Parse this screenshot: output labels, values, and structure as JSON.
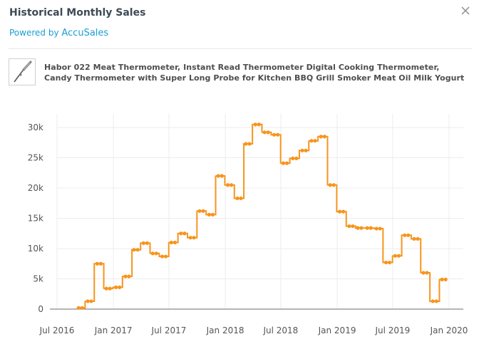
{
  "header": {
    "title": "Historical Monthly Sales",
    "powered_prefix": "Powered by ",
    "powered_brand": "AccuSales"
  },
  "product": {
    "icon": "meat-thermometer-thumbnail",
    "name": "Habor 022 Meat Thermometer, Instant Read Thermometer Digital Cooking Thermometer, Candy Thermometer with Super Long Probe for Kitchen BBQ Grill Smoker Meat Oil Milk Yogurt"
  },
  "colors": {
    "line": "#f7941d",
    "accent": "#1a9ed4",
    "grid": "#ececec"
  },
  "chart_data": {
    "type": "line",
    "step": true,
    "title": "",
    "xlabel": "",
    "ylabel": "",
    "ylim": [
      0,
      32000
    ],
    "yticks": [
      0,
      5000,
      10000,
      15000,
      20000,
      25000,
      30000
    ],
    "ytick_labels": [
      "0",
      "5k",
      "10k",
      "15k",
      "20k",
      "25k",
      "30k"
    ],
    "xticks": [
      "2016-07-01",
      "2017-01-01",
      "2017-07-01",
      "2018-01-01",
      "2018-07-01",
      "2019-01-01",
      "2019-07-01",
      "2020-01-01"
    ],
    "xtick_labels": [
      "Jul 2016",
      "Jan 2017",
      "Jul 2017",
      "Jan 2018",
      "Jul 2018",
      "Jan 2019",
      "Jul 2019",
      "Jan 2020"
    ],
    "grid": true,
    "series": [
      {
        "x": [
          "2016-09",
          "2016-10",
          "2016-11",
          "2016-12",
          "2017-01",
          "2017-02",
          "2017-03",
          "2017-04",
          "2017-05",
          "2017-06",
          "2017-07",
          "2017-08",
          "2017-09",
          "2017-10",
          "2017-11",
          "2017-12",
          "2018-01",
          "2018-02",
          "2018-03",
          "2018-04",
          "2018-05",
          "2018-06",
          "2018-07",
          "2018-08",
          "2018-09",
          "2018-10",
          "2018-11",
          "2018-12",
          "2019-01",
          "2019-02",
          "2019-03",
          "2019-04",
          "2019-05",
          "2019-06",
          "2019-07",
          "2019-08",
          "2019-09",
          "2019-10",
          "2019-11",
          "2019-12"
        ],
        "values": [
          200,
          1300,
          7500,
          3400,
          3600,
          5400,
          9800,
          10900,
          9200,
          8700,
          11000,
          12500,
          11800,
          16200,
          15600,
          22000,
          20500,
          18300,
          27300,
          30500,
          29200,
          28800,
          24100,
          24900,
          26200,
          27800,
          28500,
          20500,
          16100,
          13700,
          13400,
          13400,
          13300,
          7700,
          8800,
          12200,
          11600,
          6000,
          1300,
          4900
        ]
      }
    ]
  }
}
